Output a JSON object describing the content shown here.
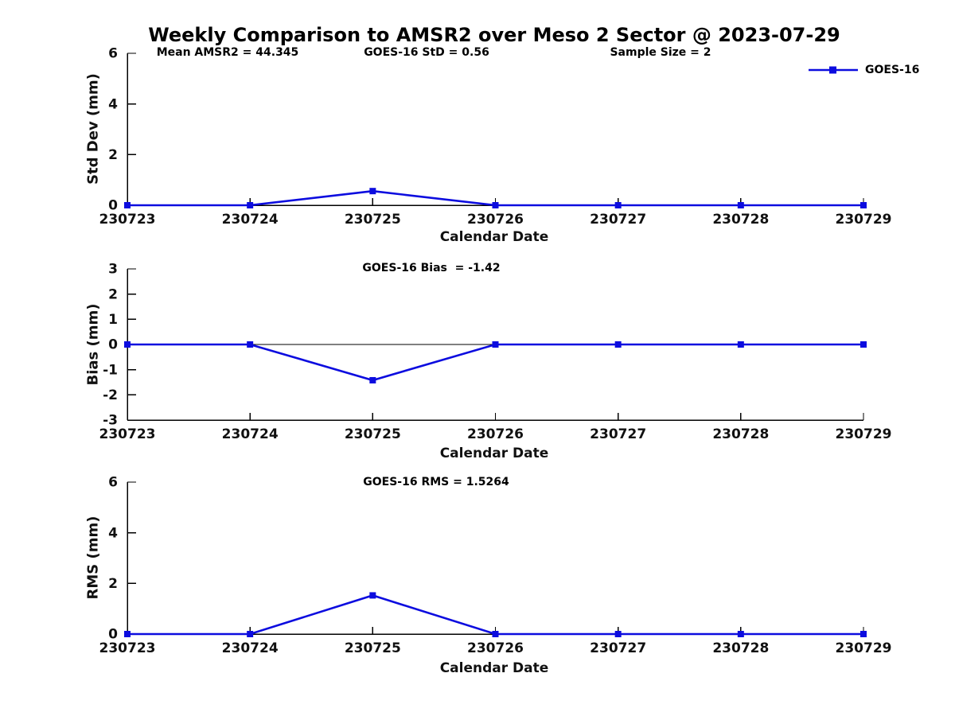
{
  "title": "Weekly Comparison to AMSR2 over Meso 2 Sector @ 2023-07-29",
  "legend": {
    "label": "GOES-16",
    "color": "#0c0cdf"
  },
  "xlabel": "Calendar Date",
  "chart_data": [
    {
      "type": "line",
      "panel": "std-dev",
      "title": "",
      "annotations": [
        "Mean AMSR2 = 44.345",
        "GOES-16 StD = 0.56",
        "Sample Size = 2"
      ],
      "categories": [
        "230723",
        "230724",
        "230725",
        "230726",
        "230727",
        "230728",
        "230729"
      ],
      "series": [
        {
          "name": "GOES-16",
          "color": "#0c0cdf",
          "values": [
            0,
            0,
            0.56,
            0,
            0,
            0,
            0
          ]
        }
      ],
      "xlabel": "Calendar Date",
      "ylabel": "Std Dev (mm)",
      "ylim": [
        0,
        6
      ],
      "yticks": [
        0,
        2,
        4,
        6
      ],
      "zero_line": false,
      "grid": false,
      "marker": "square",
      "legend_position": "top-right"
    },
    {
      "type": "line",
      "panel": "bias",
      "title": "",
      "annotations": [
        "GOES-16 Bias  = -1.42"
      ],
      "categories": [
        "230723",
        "230724",
        "230725",
        "230726",
        "230727",
        "230728",
        "230729"
      ],
      "series": [
        {
          "name": "GOES-16",
          "color": "#0c0cdf",
          "values": [
            0,
            0,
            -1.42,
            0,
            0,
            0,
            0
          ]
        }
      ],
      "xlabel": "Calendar Date",
      "ylabel": "Bias (mm)",
      "ylim": [
        -3,
        3
      ],
      "yticks": [
        -3,
        -2,
        -1,
        0,
        1,
        2,
        3
      ],
      "zero_line": true,
      "grid": false,
      "marker": "square",
      "legend_position": "none"
    },
    {
      "type": "line",
      "panel": "rms",
      "title": "",
      "annotations": [
        "GOES-16 RMS = 1.5264"
      ],
      "categories": [
        "230723",
        "230724",
        "230725",
        "230726",
        "230727",
        "230728",
        "230729"
      ],
      "series": [
        {
          "name": "GOES-16",
          "color": "#0c0cdf",
          "values": [
            0,
            0,
            1.5264,
            0,
            0,
            0,
            0
          ]
        }
      ],
      "xlabel": "Calendar Date",
      "ylabel": "RMS (mm)",
      "ylim": [
        0,
        6
      ],
      "yticks": [
        0,
        2,
        4,
        6
      ],
      "zero_line": false,
      "grid": false,
      "marker": "square",
      "legend_position": "none"
    }
  ]
}
